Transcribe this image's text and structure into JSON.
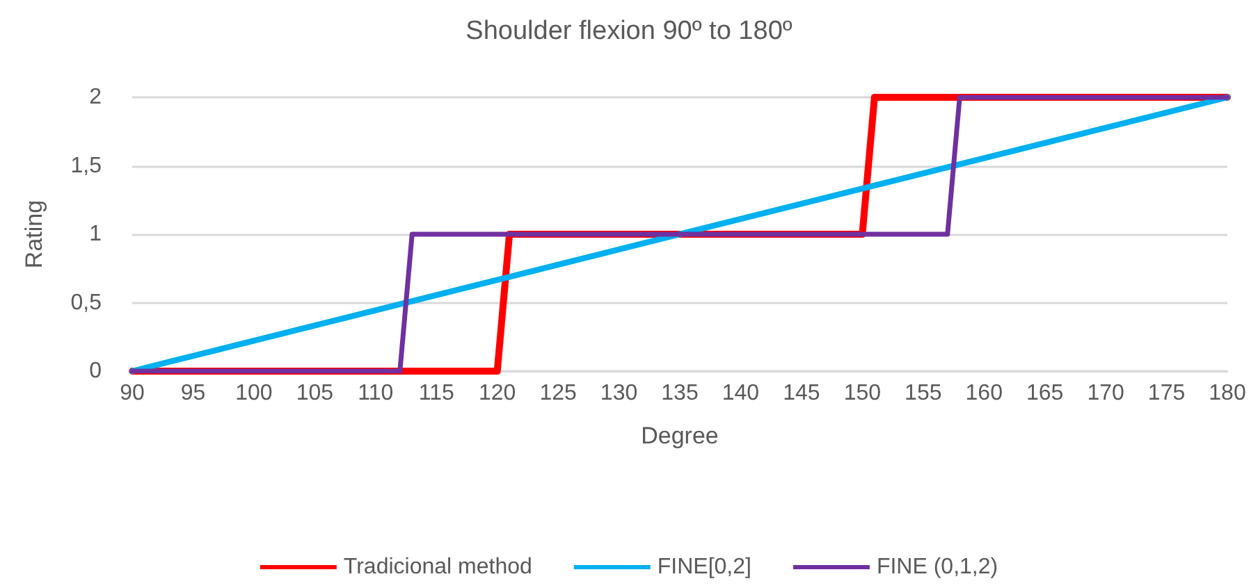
{
  "chart_data": {
    "type": "line",
    "title": "Shoulder flexion 90º to 180º",
    "xlabel": "Degree",
    "ylabel": "Rating",
    "series": [
      {
        "name": "Tradicional method",
        "color": "#ff0000",
        "x": [
          90,
          120,
          121,
          150,
          151,
          180
        ],
        "values": [
          0,
          0,
          1,
          1,
          2,
          2
        ]
      },
      {
        "name": "FINE[0,2]",
        "color": "#00b0f0",
        "x": [
          90,
          180
        ],
        "values": [
          0,
          2
        ]
      },
      {
        "name": "FINE (0,1,2)",
        "color": "#7030a0",
        "x": [
          90,
          112,
          113,
          157,
          158,
          180
        ],
        "values": [
          0,
          0,
          1,
          1,
          2,
          2
        ]
      }
    ],
    "xlim": [
      90,
      180
    ],
    "xticks": [
      90,
      95,
      100,
      105,
      110,
      115,
      120,
      125,
      130,
      135,
      140,
      145,
      150,
      155,
      160,
      165,
      170,
      175,
      180
    ],
    "ylim": [
      0,
      2
    ],
    "yticks": [
      0,
      {
        "value": 0.5,
        "label": "0,5"
      },
      1,
      {
        "value": 1.5,
        "label": "1,5"
      },
      2
    ],
    "grid": "y",
    "legend": "bottom",
    "marker": "none",
    "line_style": "solid"
  }
}
